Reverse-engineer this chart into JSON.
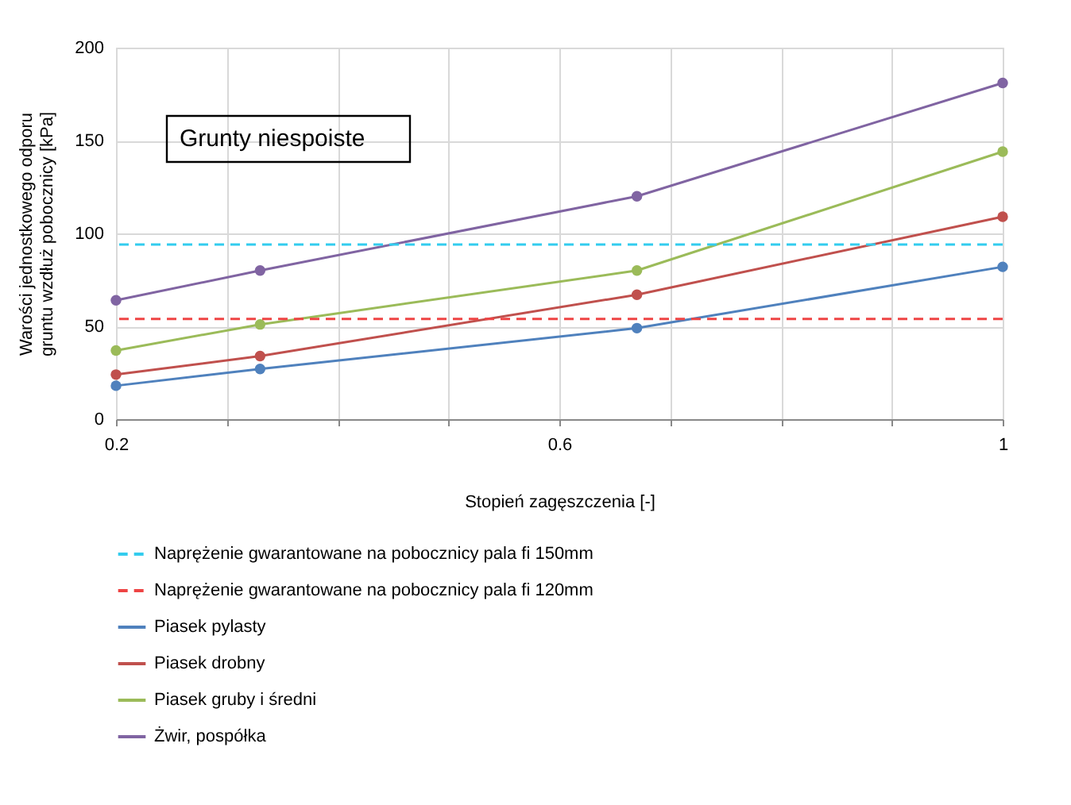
{
  "chart_data": {
    "type": "line",
    "xlabel": "Stopień zagęszczenia [-]",
    "ylabel": "Warości jednostkowego odporu\ngruntu wzdłuż pobocznicy [kPa]",
    "annotations": [
      "Grunty niespoiste"
    ],
    "x": [
      0.2,
      0.33,
      0.67,
      1
    ],
    "series": [
      {
        "name": "Piasek pylasty",
        "color": "#4f81bd",
        "values": [
          18,
          27,
          49,
          82
        ]
      },
      {
        "name": "Piasek drobny",
        "color": "#c0504d",
        "values": [
          24,
          34,
          67,
          109
        ]
      },
      {
        "name": "Piasek gruby i średni",
        "color": "#9bbb59",
        "values": [
          37,
          51,
          80,
          144
        ]
      },
      {
        "name": "Żwir, pospółka",
        "color": "#8064a2",
        "values": [
          64,
          80,
          120,
          181
        ]
      }
    ],
    "ref_lines": [
      {
        "axis": "y",
        "value": 94,
        "label": "Naprężenie gwarantowane na pobocznicy pala fi 150mm",
        "color": "#33ccee",
        "line_style": "dashed"
      },
      {
        "axis": "y",
        "value": 54,
        "label": "Naprężenie gwarantowane na pobocznicy pala fi 120mm",
        "color": "#ee4444",
        "line_style": "dashed"
      }
    ],
    "xlim": [
      0.2,
      1
    ],
    "xticks": [
      0.2,
      {
        "value": 0.3,
        "label": null
      },
      {
        "value": 0.4,
        "label": null
      },
      {
        "value": 0.5,
        "label": null
      },
      0.6,
      {
        "value": 0.7,
        "label": null
      },
      {
        "value": 0.8,
        "label": null
      },
      {
        "value": 0.9,
        "label": null
      },
      1
    ],
    "ylim": [
      0,
      200
    ],
    "yticks": [
      0,
      50,
      100,
      150,
      200
    ],
    "grid": true,
    "legend": "bottom",
    "marker": "circle",
    "line_style": "solid"
  }
}
